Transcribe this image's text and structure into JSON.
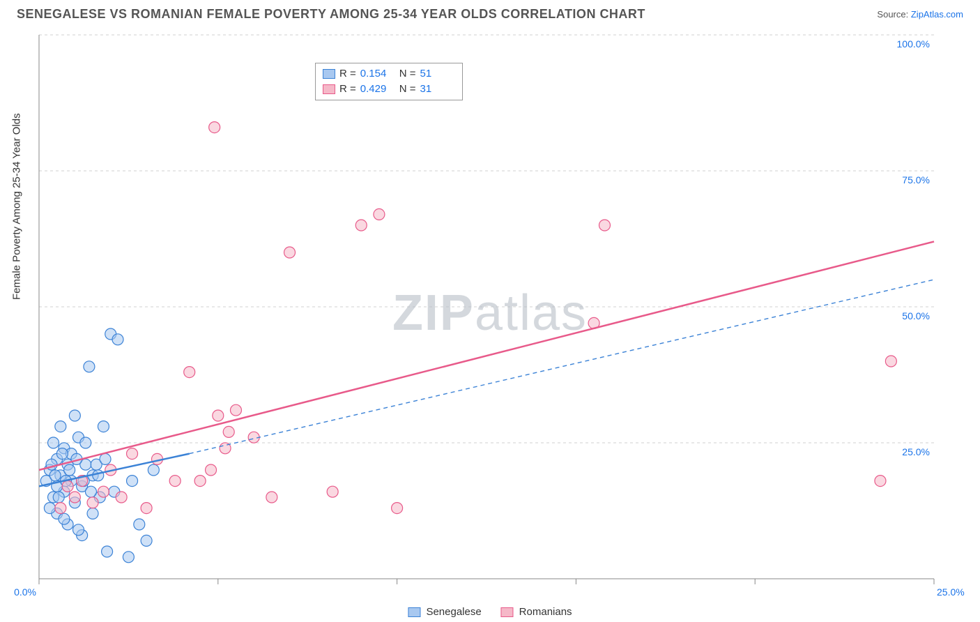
{
  "title": "SENEGALESE VS ROMANIAN FEMALE POVERTY AMONG 25-34 YEAR OLDS CORRELATION CHART",
  "source_label": "Source:",
  "source_name": "ZipAtlas.com",
  "ylabel": "Female Poverty Among 25-34 Year Olds",
  "watermark_zip": "ZIP",
  "watermark_atlas": "atlas",
  "chart": {
    "type": "scatter",
    "background_color": "#ffffff",
    "grid_color": "#d0d0d0",
    "axis_color": "#888888",
    "label_color": "#1a73e8",
    "title_color": "#555555",
    "title_fontsize": 18,
    "label_fontsize": 15,
    "xlim": [
      0,
      25
    ],
    "ylim": [
      0,
      100
    ],
    "x_ticks": [
      0,
      5,
      10,
      15,
      20,
      25
    ],
    "x_tick_labels": [
      "0.0%",
      "",
      "",
      "",
      "",
      "25.0%"
    ],
    "y_ticks": [
      25,
      50,
      75,
      100
    ],
    "y_tick_labels": [
      "25.0%",
      "50.0%",
      "75.0%",
      "100.0%"
    ],
    "marker_radius": 8,
    "marker_opacity": 0.55,
    "series": [
      {
        "name": "Senegalese",
        "color_fill": "#a8c8f0",
        "color_stroke": "#3b82d6",
        "swatch_fill": "#a8c8f0",
        "swatch_border": "#3b82d6",
        "r": "0.154",
        "n": "51",
        "trend": {
          "x1": 0,
          "y1": 17,
          "x2": 4.2,
          "y2": 23,
          "x2_dash": 25,
          "y2_dash": 55,
          "width": 2.5
        },
        "points": [
          [
            0.2,
            18
          ],
          [
            0.3,
            20
          ],
          [
            0.4,
            15
          ],
          [
            0.5,
            22
          ],
          [
            0.5,
            12
          ],
          [
            0.6,
            19
          ],
          [
            0.7,
            24
          ],
          [
            0.7,
            16
          ],
          [
            0.8,
            21
          ],
          [
            0.8,
            10
          ],
          [
            0.9,
            18
          ],
          [
            1.0,
            30
          ],
          [
            1.0,
            14
          ],
          [
            1.1,
            26
          ],
          [
            1.2,
            17
          ],
          [
            1.2,
            8
          ],
          [
            1.3,
            21
          ],
          [
            1.4,
            39
          ],
          [
            1.5,
            12
          ],
          [
            1.5,
            19
          ],
          [
            1.7,
            15
          ],
          [
            1.8,
            28
          ],
          [
            2.0,
            45
          ],
          [
            2.2,
            44
          ],
          [
            2.5,
            4
          ],
          [
            2.6,
            18
          ],
          [
            2.8,
            10
          ],
          [
            3.0,
            7
          ],
          [
            3.2,
            20
          ],
          [
            0.4,
            25
          ],
          [
            0.6,
            28
          ],
          [
            0.5,
            17
          ],
          [
            0.3,
            13
          ],
          [
            0.7,
            11
          ],
          [
            0.9,
            23
          ],
          [
            1.1,
            9
          ],
          [
            1.3,
            25
          ],
          [
            1.6,
            21
          ],
          [
            1.9,
            5
          ],
          [
            2.1,
            16
          ],
          [
            0.35,
            21
          ],
          [
            0.45,
            19
          ],
          [
            0.55,
            15
          ],
          [
            0.65,
            23
          ],
          [
            0.75,
            18
          ],
          [
            0.85,
            20
          ],
          [
            1.05,
            22
          ],
          [
            1.25,
            18
          ],
          [
            1.45,
            16
          ],
          [
            1.65,
            19
          ],
          [
            1.85,
            22
          ]
        ]
      },
      {
        "name": "Romanians",
        "color_fill": "#f5b8c8",
        "color_stroke": "#e85a8a",
        "swatch_fill": "#f5b8c8",
        "swatch_border": "#e85a8a",
        "r": "0.429",
        "n": "31",
        "trend": {
          "x1": 0,
          "y1": 20,
          "x2": 25,
          "y2": 62,
          "width": 2.5
        },
        "points": [
          [
            0.6,
            13
          ],
          [
            0.8,
            17
          ],
          [
            1.0,
            15
          ],
          [
            1.2,
            18
          ],
          [
            1.5,
            14
          ],
          [
            1.8,
            16
          ],
          [
            2.0,
            20
          ],
          [
            2.3,
            15
          ],
          [
            2.6,
            23
          ],
          [
            3.0,
            13
          ],
          [
            3.3,
            22
          ],
          [
            3.8,
            18
          ],
          [
            4.2,
            38
          ],
          [
            4.5,
            18
          ],
          [
            4.8,
            20
          ],
          [
            5.0,
            30
          ],
          [
            5.3,
            27
          ],
          [
            5.5,
            31
          ],
          [
            5.2,
            24
          ],
          [
            6.0,
            26
          ],
          [
            6.5,
            15
          ],
          [
            7.0,
            60
          ],
          [
            8.2,
            16
          ],
          [
            9.0,
            65
          ],
          [
            9.5,
            67
          ],
          [
            10.0,
            13
          ],
          [
            15.5,
            47
          ],
          [
            15.8,
            65
          ],
          [
            23.5,
            18
          ],
          [
            23.8,
            40
          ],
          [
            4.9,
            83
          ]
        ]
      }
    ],
    "legend_bottom": [
      "Senegalese",
      "Romanians"
    ]
  }
}
